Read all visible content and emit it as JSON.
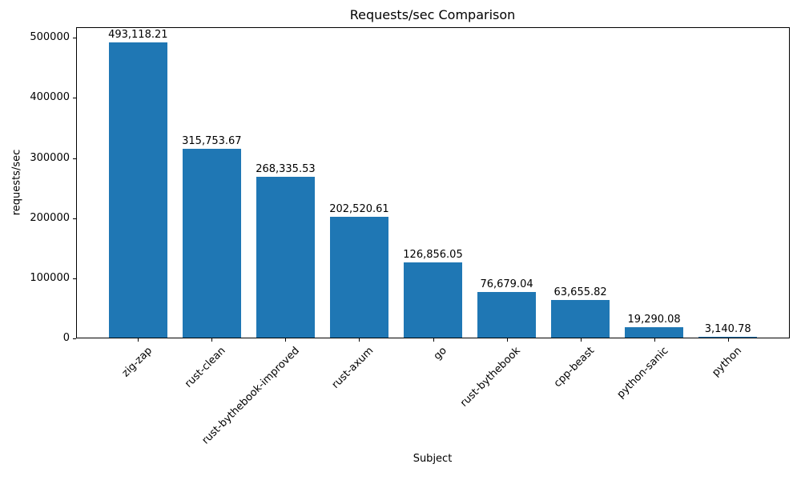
{
  "chart_data": {
    "type": "bar",
    "title": "Requests/sec Comparison",
    "xlabel": "Subject",
    "ylabel": "requests/sec",
    "categories": [
      "zig-zap",
      "rust-clean",
      "rust-bythebook-improved",
      "rust-axum",
      "go",
      "rust-bythebook",
      "cpp-beast",
      "python-sanic",
      "python"
    ],
    "values": [
      493118.21,
      315753.67,
      268335.53,
      202520.61,
      126856.05,
      76679.04,
      63655.82,
      19290.08,
      3140.78
    ],
    "bar_labels": [
      "493,118.21",
      "315,753.67",
      "268,335.53",
      "202,520.61",
      "126,856.05",
      "76,679.04",
      "63,655.82",
      "19,290.08",
      "3,140.78"
    ],
    "yticks": [
      0,
      100000,
      200000,
      300000,
      400000,
      500000
    ],
    "ytick_labels": [
      "0",
      "100000",
      "200000",
      "300000",
      "400000",
      "500000"
    ],
    "ylim": [
      0,
      517774
    ],
    "bar_color": "#1f77b4",
    "grid": false,
    "legend_position": "none",
    "x_tick_rotation_deg": 45
  }
}
